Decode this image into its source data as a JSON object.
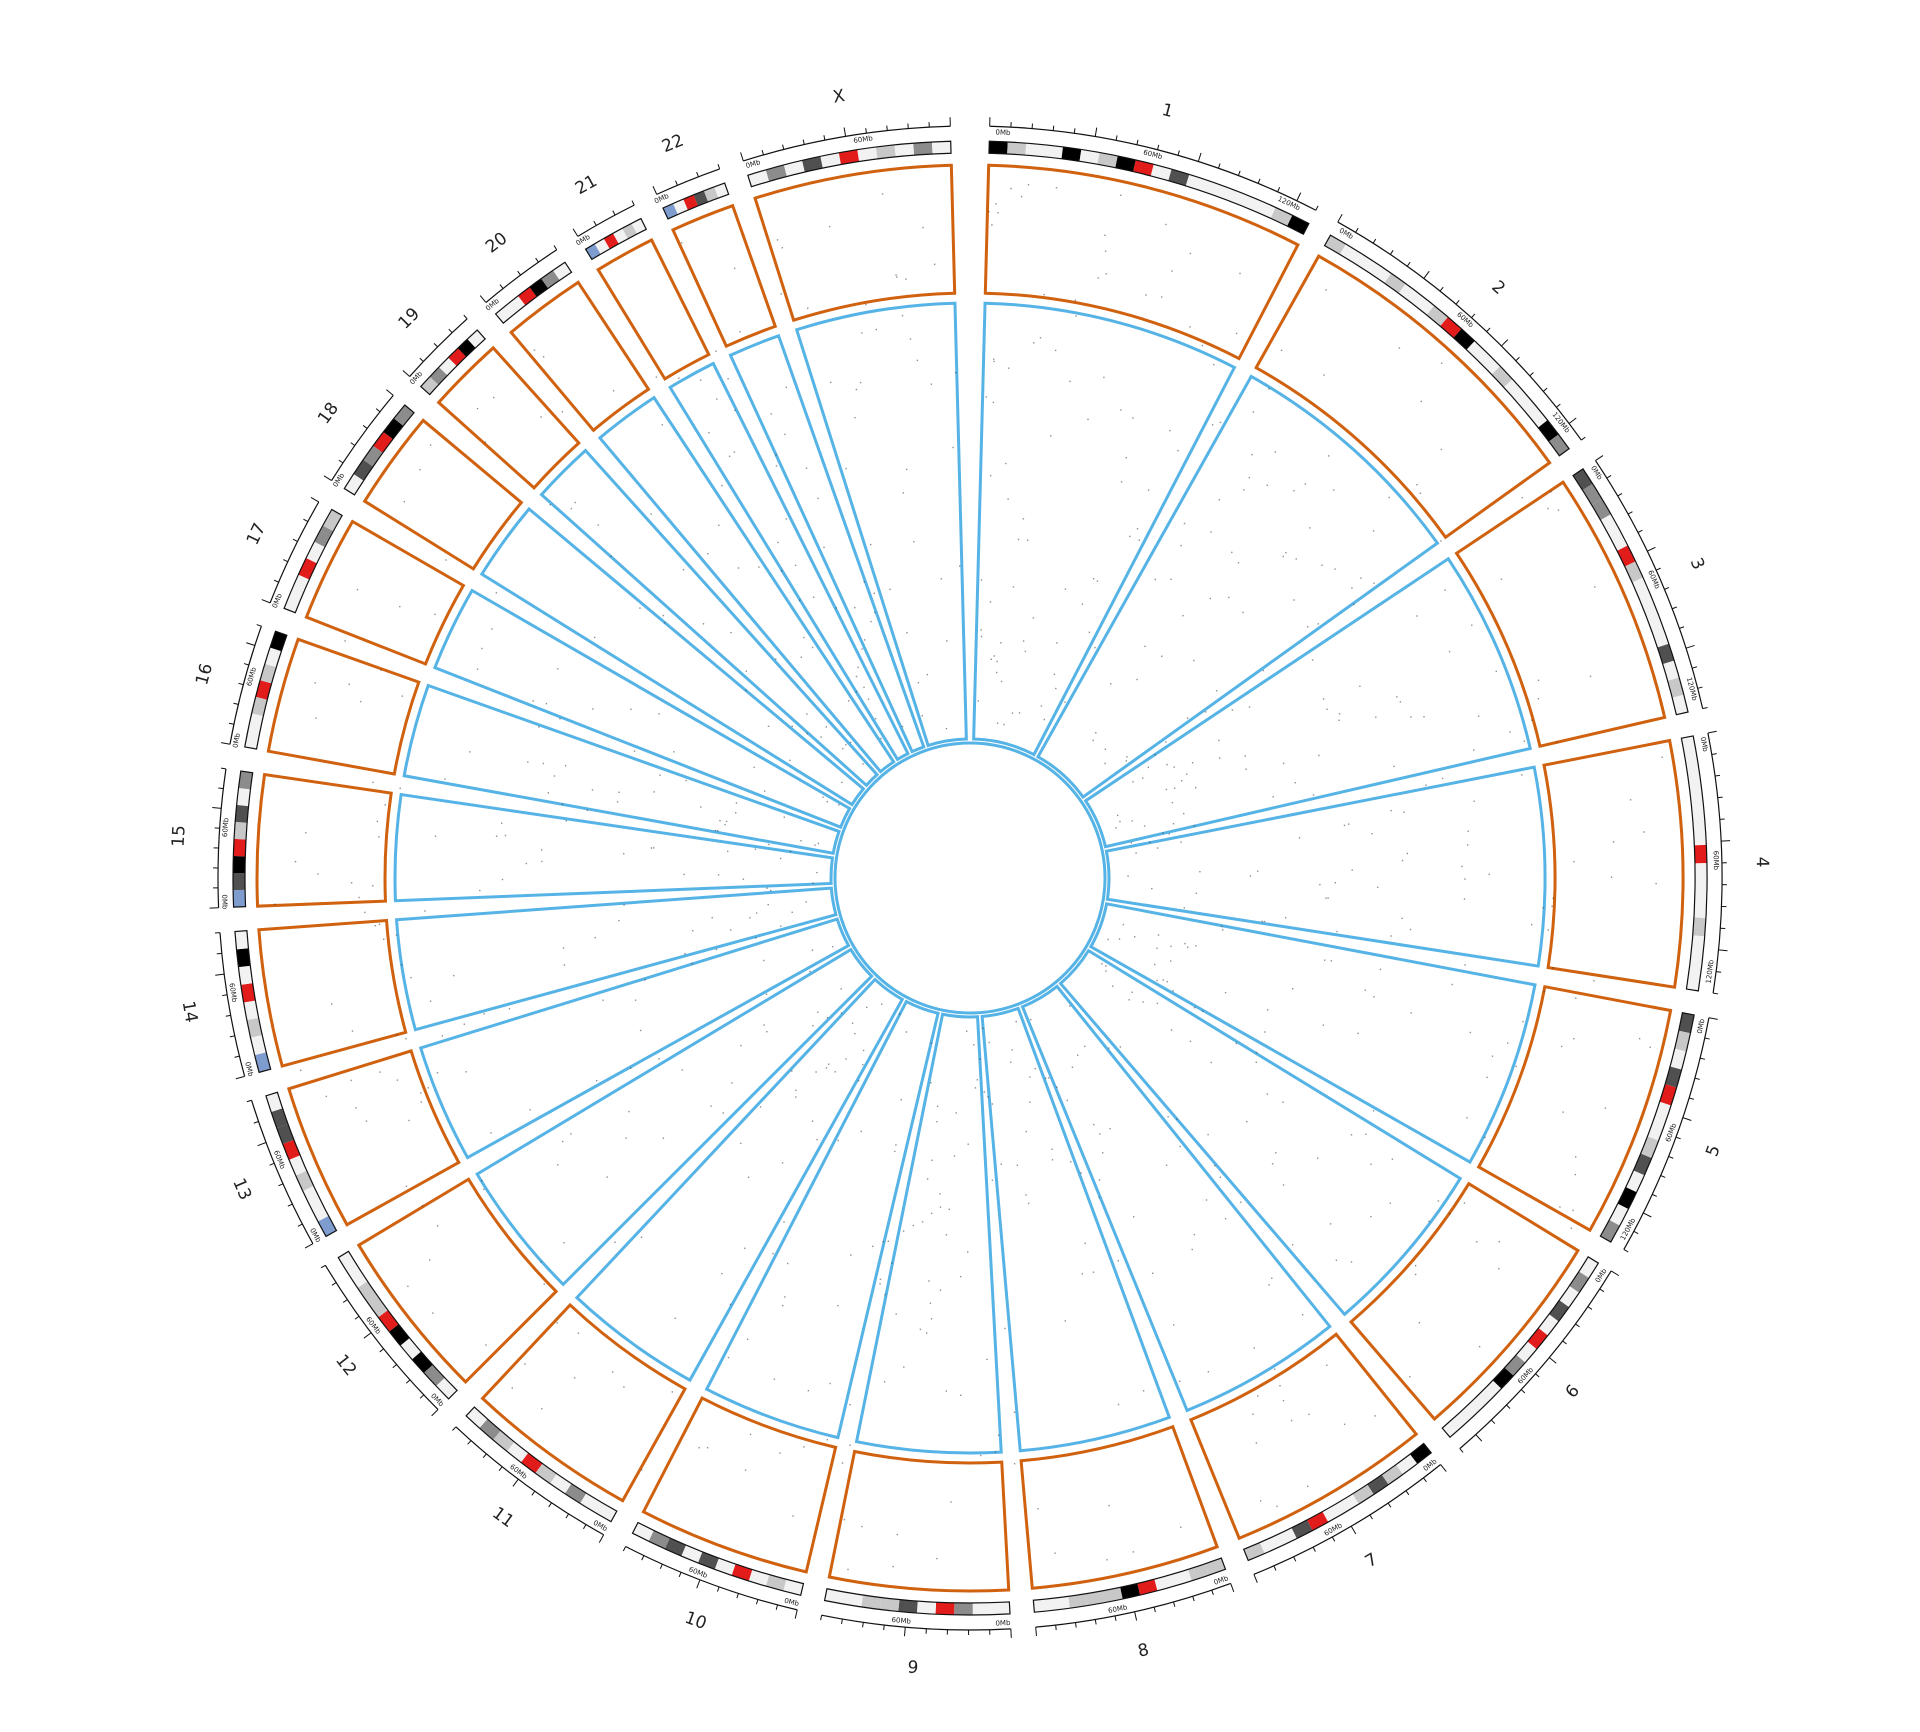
{
  "diagram": {
    "type": "circos-plot",
    "tracks": [
      {
        "name": "outer",
        "color": "#D0610F"
      },
      {
        "name": "inner",
        "color": "#56B3E6"
      }
    ],
    "ideogram_colors": {
      "gneg": "#f2f2f2",
      "gpos25": "#c8c8c8",
      "gpos50": "#8c8c8c",
      "gpos75": "#505050",
      "gpos100": "#000000",
      "centromere": "#e21b1b",
      "stalk": "#7f9ccf"
    },
    "chromosomes": [
      {
        "label": "1",
        "span": 1.0,
        "ticks": [
          "0Mb",
          "60Mb",
          "120Mb"
        ]
      },
      {
        "label": "2",
        "span": 0.97,
        "ticks": [
          "0Mb",
          "60Mb",
          "120Mb"
        ]
      },
      {
        "label": "3",
        "span": 0.8,
        "ticks": [
          "0Mb",
          "60Mb",
          "120Mb"
        ]
      },
      {
        "label": "4",
        "span": 0.77,
        "ticks": [
          "0Mb",
          "60Mb",
          "120Mb"
        ]
      },
      {
        "label": "5",
        "span": 0.73,
        "ticks": [
          "0Mb",
          "60Mb",
          "120Mb"
        ]
      },
      {
        "label": "6",
        "span": 0.69,
        "ticks": [
          "0Mb",
          "60Mb"
        ]
      },
      {
        "label": "7",
        "span": 0.64,
        "ticks": [
          "0Mb",
          "60Mb"
        ]
      },
      {
        "label": "8",
        "span": 0.59,
        "ticks": [
          "0Mb",
          "60Mb"
        ]
      },
      {
        "label": "9",
        "span": 0.56,
        "ticks": [
          "0Mb",
          "60Mb"
        ]
      },
      {
        "label": "10",
        "span": 0.54,
        "ticks": [
          "0Mb",
          "60Mb"
        ]
      },
      {
        "label": "11",
        "span": 0.54,
        "ticks": [
          "0Mb",
          "60Mb"
        ]
      },
      {
        "label": "12",
        "span": 0.54,
        "ticks": [
          "0Mb",
          "60Mb"
        ]
      },
      {
        "label": "13",
        "span": 0.46,
        "ticks": [
          "0Mb",
          "60Mb"
        ]
      },
      {
        "label": "14",
        "span": 0.43,
        "ticks": [
          "0Mb",
          "60Mb"
        ]
      },
      {
        "label": "15",
        "span": 0.41,
        "ticks": [
          "0Mb",
          "60Mb"
        ]
      },
      {
        "label": "16",
        "span": 0.36,
        "ticks": [
          "0Mb",
          "60Mb"
        ]
      },
      {
        "label": "17",
        "span": 0.33,
        "ticks": [
          "0Mb"
        ]
      },
      {
        "label": "18",
        "span": 0.31,
        "ticks": [
          "0Mb"
        ]
      },
      {
        "label": "19",
        "span": 0.24,
        "ticks": [
          "0Mb"
        ]
      },
      {
        "label": "20",
        "span": 0.26,
        "ticks": [
          "0Mb"
        ]
      },
      {
        "label": "21",
        "span": 0.19,
        "ticks": [
          "0Mb"
        ]
      },
      {
        "label": "22",
        "span": 0.2,
        "ticks": [
          "0Mb"
        ]
      },
      {
        "label": "X",
        "span": 0.62,
        "ticks": [
          "0Mb",
          "60Mb"
        ]
      }
    ]
  }
}
